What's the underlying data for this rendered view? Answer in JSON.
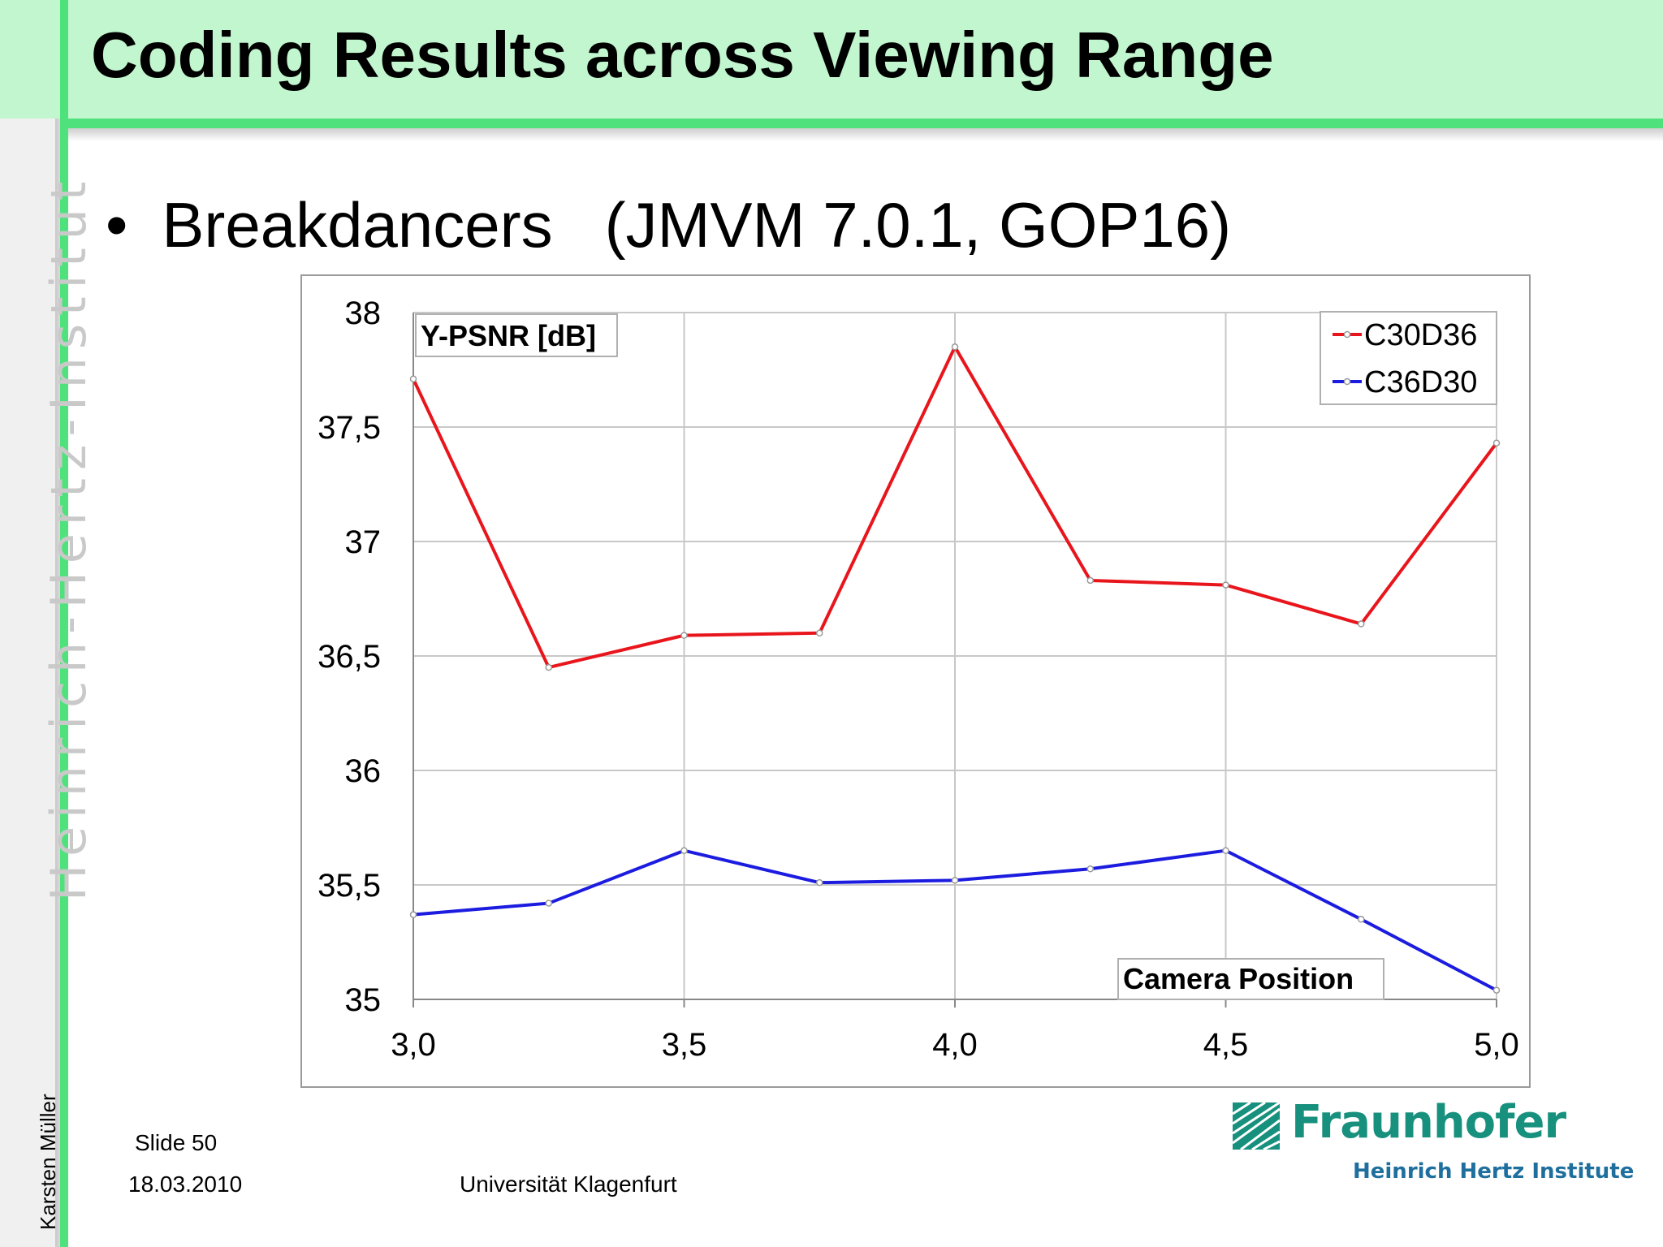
{
  "slide": {
    "title": "Coding Results across Viewing Range",
    "bullet_symbol": "•",
    "bullet_text": "Breakdancers",
    "bullet_spec": "(JMVM 7.0.1, GOP16)",
    "side_institute": "Heinrich-Hertz-Institut",
    "side_author": "Karsten Müller",
    "slide_number": "Slide 50",
    "date": "18.03.2010",
    "university": "Universität Klagenfurt"
  },
  "logo": {
    "name": "Fraunhofer",
    "subtitle": "Heinrich Hertz Institute",
    "color": "#17907e"
  },
  "chart_data": {
    "type": "line",
    "ylabel": "Y-PSNR [dB]",
    "xlabel": "Camera Position",
    "xlim": [
      3.0,
      5.0
    ],
    "ylim": [
      35,
      38
    ],
    "x_ticks": [
      "3,0",
      "3,5",
      "4,0",
      "4,5",
      "5,0"
    ],
    "y_ticks": [
      "35",
      "35,5",
      "36",
      "36,5",
      "37",
      "37,5",
      "38"
    ],
    "grid": true,
    "legend_position": "top-right",
    "x": [
      3.0,
      3.25,
      3.5,
      3.75,
      4.0,
      4.25,
      4.5,
      4.75,
      5.0
    ],
    "series": [
      {
        "name": "C30D36",
        "color": "#e8161c",
        "values": [
          37.71,
          36.45,
          36.59,
          36.6,
          37.85,
          36.83,
          36.81,
          36.64,
          37.43
        ]
      },
      {
        "name": "C36D30",
        "color": "#1c1ce0",
        "values": [
          35.37,
          35.42,
          35.65,
          35.51,
          35.52,
          35.57,
          35.65,
          35.35,
          35.04
        ]
      }
    ]
  }
}
